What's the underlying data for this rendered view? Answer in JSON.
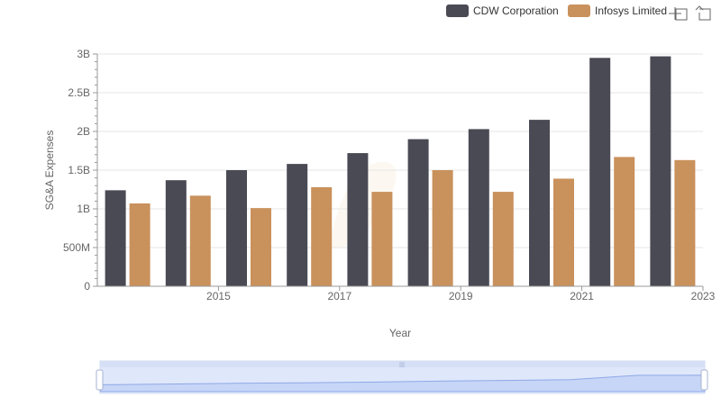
{
  "chart_data": {
    "type": "bar",
    "xlabel": "Year",
    "ylabel": "SG&A Expenses",
    "ylim": [
      0,
      3000000000
    ],
    "y_ticks": [
      {
        "value": 0,
        "label": "0"
      },
      {
        "value": 500000000,
        "label": "500M"
      },
      {
        "value": 1000000000,
        "label": "1B"
      },
      {
        "value": 1500000000,
        "label": "1.5B"
      },
      {
        "value": 2000000000,
        "label": "2B"
      },
      {
        "value": 2500000000,
        "label": "2.5B"
      },
      {
        "value": 3000000000,
        "label": "3B"
      }
    ],
    "x_ticks": [
      2015,
      2017,
      2019,
      2021,
      2023
    ],
    "categories": [
      2014,
      2015,
      2016,
      2017,
      2018,
      2019,
      2020,
      2021,
      2022,
      2023
    ],
    "series": [
      {
        "name": "CDW Corporation",
        "color": "#4a4a55",
        "values": [
          1240000000,
          1370000000,
          1500000000,
          1580000000,
          1720000000,
          1900000000,
          2030000000,
          2150000000,
          2950000000,
          2970000000
        ]
      },
      {
        "name": "Infosys Limited",
        "color": "#c9915c",
        "values": [
          1070000000,
          1170000000,
          1010000000,
          1280000000,
          1220000000,
          1500000000,
          1220000000,
          1390000000,
          1670000000,
          1630000000
        ]
      }
    ],
    "legend_position": "top-right",
    "grid": true
  },
  "toolbar": {
    "icons": [
      "zoom-in-icon",
      "reset-icon"
    ]
  },
  "data_zoom": {
    "start_percent": 0,
    "end_percent": 100,
    "handle_label": "|||"
  }
}
